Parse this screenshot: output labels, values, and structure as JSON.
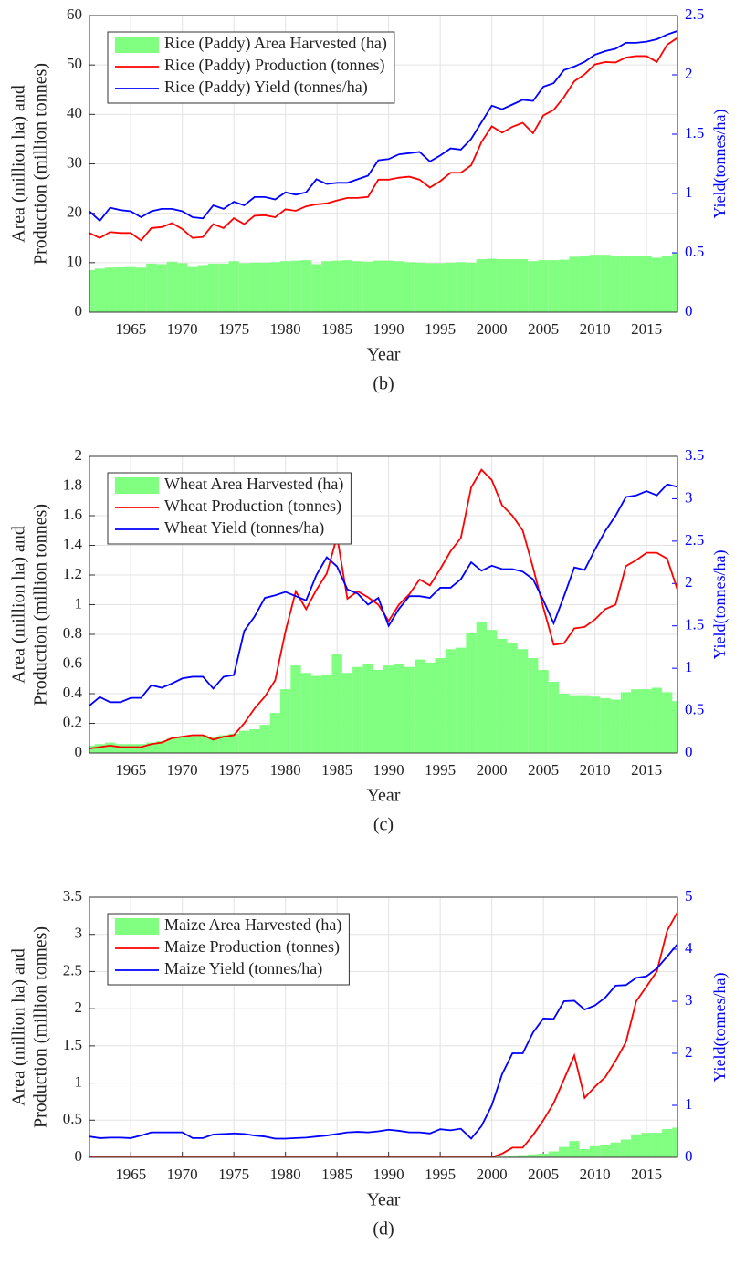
{
  "chart_data": [
    {
      "type": "bar_line",
      "caption": "(b)",
      "xlabel": "Year",
      "ylabel": [
        "Area (million ha) and",
        "Production (million tonnes)"
      ],
      "y2label": "Yield(tonnes/ha)",
      "x": [
        1961,
        1962,
        1963,
        1964,
        1965,
        1966,
        1967,
        1968,
        1969,
        1970,
        1971,
        1972,
        1973,
        1974,
        1975,
        1976,
        1977,
        1978,
        1979,
        1980,
        1981,
        1982,
        1983,
        1984,
        1985,
        1986,
        1987,
        1988,
        1989,
        1990,
        1991,
        1992,
        1993,
        1994,
        1995,
        1996,
        1997,
        1998,
        1999,
        2000,
        2001,
        2002,
        2003,
        2004,
        2005,
        2006,
        2007,
        2008,
        2009,
        2010,
        2011,
        2012,
        2013,
        2014,
        2015,
        2016,
        2017,
        2018
      ],
      "series": [
        {
          "name": "Rice (Paddy) Area Harvested (ha)",
          "type": "bar",
          "color": "#80ff80",
          "values": [
            8.5,
            8.8,
            9,
            9.2,
            9.3,
            9,
            9.8,
            9.7,
            10.2,
            9.9,
            9.3,
            9.5,
            9.8,
            9.8,
            10.3,
            9.9,
            10,
            10,
            10.1,
            10.3,
            10.4,
            10.5,
            9.7,
            10.3,
            10.4,
            10.5,
            10.3,
            10.2,
            10.4,
            10.4,
            10.3,
            10.1,
            10,
            9.9,
            9.9,
            10,
            10.1,
            10,
            10.7,
            10.8,
            10.7,
            10.7,
            10.7,
            10.3,
            10.5,
            10.5,
            10.6,
            11.2,
            11.4,
            11.6,
            11.6,
            11.4,
            11.4,
            11.3,
            11.4,
            11,
            11.3,
            11.9
          ]
        },
        {
          "name": "Rice (Paddy) Production (tonnes)",
          "type": "line",
          "color": "#ff0000",
          "values": [
            16,
            15,
            16.2,
            16,
            16,
            14.5,
            17,
            17.2,
            18,
            16.8,
            15,
            15.2,
            17.8,
            17,
            19,
            17.8,
            19.5,
            19.6,
            19.2,
            20.8,
            20.5,
            21.4,
            21.8,
            22,
            22.6,
            23.1,
            23.1,
            23.3,
            26.8,
            26.8,
            27.2,
            27.4,
            26.8,
            25.2,
            26.5,
            28.2,
            28.2,
            29.7,
            34.4,
            37.6,
            36.3,
            37.5,
            38.3,
            36.2,
            39.8,
            40.9,
            43.5,
            46.7,
            48.1,
            50.1,
            50.6,
            50.5,
            51.5,
            51.8,
            51.8,
            50.6,
            54.1,
            55.5
          ]
        },
        {
          "name": "Rice (Paddy) Yield (tonnes/ha)",
          "type": "line",
          "axis": "y2",
          "color": "#0000ff",
          "values": [
            0.85,
            0.77,
            0.88,
            0.86,
            0.85,
            0.8,
            0.85,
            0.87,
            0.87,
            0.85,
            0.8,
            0.79,
            0.9,
            0.87,
            0.93,
            0.9,
            0.97,
            0.97,
            0.95,
            1.01,
            0.99,
            1.01,
            1.12,
            1.08,
            1.09,
            1.09,
            1.12,
            1.15,
            1.28,
            1.29,
            1.33,
            1.34,
            1.35,
            1.27,
            1.32,
            1.38,
            1.37,
            1.46,
            1.6,
            1.74,
            1.71,
            1.75,
            1.79,
            1.78,
            1.9,
            1.93,
            2.04,
            2.07,
            2.11,
            2.17,
            2.2,
            2.22,
            2.27,
            2.27,
            2.28,
            2.3,
            2.34,
            2.37
          ]
        }
      ],
      "xlim": [
        1961,
        2018
      ],
      "xticks": [
        1965,
        1970,
        1975,
        1980,
        1985,
        1990,
        1995,
        2000,
        2005,
        2010,
        2015
      ],
      "ylim": [
        0,
        60
      ],
      "yticks": [
        0,
        10,
        20,
        30,
        40,
        50,
        60
      ],
      "y2lim": [
        0,
        2.5
      ],
      "y2ticks": [
        0,
        0.5,
        1,
        1.5,
        2,
        2.5
      ],
      "grid": true,
      "legend": "upper left"
    },
    {
      "type": "bar_line",
      "caption": "(c)",
      "xlabel": "Year",
      "ylabel": [
        "Area (million ha) and",
        "Production (million tonnes)"
      ],
      "y2label": "Yield(tonnes/ha)",
      "x": [
        1961,
        1962,
        1963,
        1964,
        1965,
        1966,
        1967,
        1968,
        1969,
        1970,
        1971,
        1972,
        1973,
        1974,
        1975,
        1976,
        1977,
        1978,
        1979,
        1980,
        1981,
        1982,
        1983,
        1984,
        1985,
        1986,
        1987,
        1988,
        1989,
        1990,
        1991,
        1992,
        1993,
        1994,
        1995,
        1996,
        1997,
        1998,
        1999,
        2000,
        2001,
        2002,
        2003,
        2004,
        2005,
        2006,
        2007,
        2008,
        2009,
        2010,
        2011,
        2012,
        2013,
        2014,
        2015,
        2016,
        2017,
        2018
      ],
      "series": [
        {
          "name": "Wheat Area Harvested (ha)",
          "type": "bar",
          "color": "#80ff80",
          "values": [
            0.05,
            0.06,
            0.07,
            0.06,
            0.06,
            0.06,
            0.07,
            0.08,
            0.1,
            0.11,
            0.12,
            0.12,
            0.11,
            0.12,
            0.13,
            0.15,
            0.16,
            0.19,
            0.27,
            0.43,
            0.59,
            0.54,
            0.52,
            0.53,
            0.67,
            0.54,
            0.58,
            0.6,
            0.56,
            0.59,
            0.6,
            0.58,
            0.63,
            0.61,
            0.64,
            0.7,
            0.71,
            0.81,
            0.88,
            0.83,
            0.77,
            0.74,
            0.7,
            0.64,
            0.56,
            0.48,
            0.4,
            0.39,
            0.39,
            0.38,
            0.37,
            0.36,
            0.41,
            0.43,
            0.43,
            0.44,
            0.41,
            0.35
          ]
        },
        {
          "name": "Wheat Production (tonnes)",
          "type": "line",
          "color": "#ff0000",
          "values": [
            0.03,
            0.04,
            0.05,
            0.04,
            0.04,
            0.04,
            0.06,
            0.07,
            0.1,
            0.11,
            0.12,
            0.12,
            0.09,
            0.11,
            0.12,
            0.2,
            0.3,
            0.38,
            0.49,
            0.82,
            1.09,
            0.97,
            1.1,
            1.21,
            1.46,
            1.04,
            1.09,
            1.05,
            1,
            0.89,
            1,
            1.07,
            1.17,
            1.13,
            1.24,
            1.36,
            1.45,
            1.79,
            1.91,
            1.84,
            1.67,
            1.6,
            1.5,
            1.25,
            0.98,
            0.73,
            0.74,
            0.84,
            0.85,
            0.9,
            0.97,
            1,
            1.26,
            1.3,
            1.35,
            1.35,
            1.31,
            1.1
          ]
        },
        {
          "name": "Wheat Yield (tonnes/ha)",
          "type": "line",
          "axis": "y2",
          "color": "#0000ff",
          "values": [
            0.56,
            0.66,
            0.6,
            0.6,
            0.65,
            0.65,
            0.8,
            0.77,
            0.82,
            0.88,
            0.9,
            0.9,
            0.76,
            0.9,
            0.92,
            1.44,
            1.61,
            1.83,
            1.86,
            1.9,
            1.85,
            1.8,
            2.1,
            2.31,
            2.2,
            1.93,
            1.88,
            1.75,
            1.83,
            1.5,
            1.7,
            1.85,
            1.85,
            1.83,
            1.95,
            1.95,
            2.05,
            2.25,
            2.15,
            2.21,
            2.17,
            2.17,
            2.14,
            2.05,
            1.8,
            1.53,
            1.85,
            2.19,
            2.16,
            2.4,
            2.62,
            2.8,
            3.02,
            3.04,
            3.09,
            3.04,
            3.17,
            3.14
          ]
        }
      ],
      "xlim": [
        1961,
        2018
      ],
      "xticks": [
        1965,
        1970,
        1975,
        1980,
        1985,
        1990,
        1995,
        2000,
        2005,
        2010,
        2015
      ],
      "ylim": [
        0,
        2
      ],
      "yticks": [
        0,
        0.2,
        0.4,
        0.6,
        0.8,
        1,
        1.2,
        1.4,
        1.6,
        1.8,
        2
      ],
      "y2lim": [
        0,
        3.5
      ],
      "y2ticks": [
        0,
        0.5,
        1,
        1.5,
        2,
        2.5,
        3,
        3.5
      ],
      "grid": true,
      "legend": "upper left"
    },
    {
      "type": "bar_line",
      "caption": "(d)",
      "xlabel": "Year",
      "ylabel": [
        "Area (million ha) and",
        "Production (million tonnes)"
      ],
      "y2label": "Yield(tonnes/ha)",
      "x": [
        1961,
        1962,
        1963,
        1964,
        1965,
        1966,
        1967,
        1968,
        1969,
        1970,
        1971,
        1972,
        1973,
        1974,
        1975,
        1976,
        1977,
        1978,
        1979,
        1980,
        1981,
        1982,
        1983,
        1984,
        1985,
        1986,
        1987,
        1988,
        1989,
        1990,
        1991,
        1992,
        1993,
        1994,
        1995,
        1996,
        1997,
        1998,
        1999,
        2000,
        2001,
        2002,
        2003,
        2004,
        2005,
        2006,
        2007,
        2008,
        2009,
        2010,
        2011,
        2012,
        2013,
        2014,
        2015,
        2016,
        2017,
        2018
      ],
      "series": [
        {
          "name": "Maize Area Harvested (ha)",
          "type": "bar",
          "color": "#80ff80",
          "values": [
            0,
            0,
            0,
            0,
            0,
            0,
            0,
            0,
            0,
            0,
            0,
            0,
            0,
            0,
            0,
            0,
            0,
            0,
            0,
            0,
            0,
            0,
            0,
            0,
            0,
            0,
            0,
            0,
            0,
            0,
            0,
            0,
            0,
            0,
            0,
            0,
            0,
            0,
            0,
            0.01,
            0.01,
            0.02,
            0.03,
            0.04,
            0.05,
            0.08,
            0.14,
            0.22,
            0.11,
            0.15,
            0.17,
            0.2,
            0.24,
            0.31,
            0.33,
            0.33,
            0.38,
            0.4
          ]
        },
        {
          "name": "Maize Production (tonnes)",
          "type": "line",
          "color": "#ff0000",
          "values": [
            0,
            0,
            0,
            0,
            0,
            0,
            0,
            0,
            0,
            0,
            0,
            0,
            0,
            0,
            0,
            0,
            0,
            0,
            0,
            0,
            0,
            0,
            0,
            0,
            0,
            0,
            0,
            0,
            0,
            0,
            0,
            0,
            0,
            0,
            0,
            0,
            0,
            0,
            0,
            0,
            0.05,
            0.13,
            0.13,
            0.3,
            0.5,
            0.73,
            1.05,
            1.37,
            0.8,
            0.95,
            1.08,
            1.3,
            1.55,
            2.1,
            2.3,
            2.5,
            3.05,
            3.3
          ]
        },
        {
          "name": "Maize Yield (tonnes/ha)",
          "type": "line",
          "axis": "y2",
          "color": "#0000ff",
          "values": [
            0.4,
            0.37,
            0.38,
            0.38,
            0.37,
            0.42,
            0.48,
            0.48,
            0.48,
            0.48,
            0.37,
            0.37,
            0.44,
            0.45,
            0.46,
            0.45,
            0.42,
            0.4,
            0.36,
            0.36,
            0.37,
            0.38,
            0.4,
            0.42,
            0.45,
            0.48,
            0.49,
            0.48,
            0.5,
            0.53,
            0.51,
            0.48,
            0.48,
            0.46,
            0.54,
            0.52,
            0.55,
            0.36,
            0.6,
            1,
            1.6,
            2,
            2,
            2.4,
            2.67,
            2.66,
            3,
            3.01,
            2.84,
            2.92,
            3.07,
            3.3,
            3.31,
            3.45,
            3.48,
            3.63,
            3.86,
            4.1
          ]
        }
      ],
      "xlim": [
        1961,
        2018
      ],
      "xticks": [
        1965,
        1970,
        1975,
        1980,
        1985,
        1990,
        1995,
        2000,
        2005,
        2010,
        2015
      ],
      "ylim": [
        0,
        3.5
      ],
      "yticks": [
        0,
        0.5,
        1,
        1.5,
        2,
        2.5,
        3,
        3.5
      ],
      "y2lim": [
        0,
        5
      ],
      "y2ticks": [
        0,
        1,
        2,
        3,
        4,
        5
      ],
      "grid": true,
      "legend": "upper left"
    }
  ]
}
